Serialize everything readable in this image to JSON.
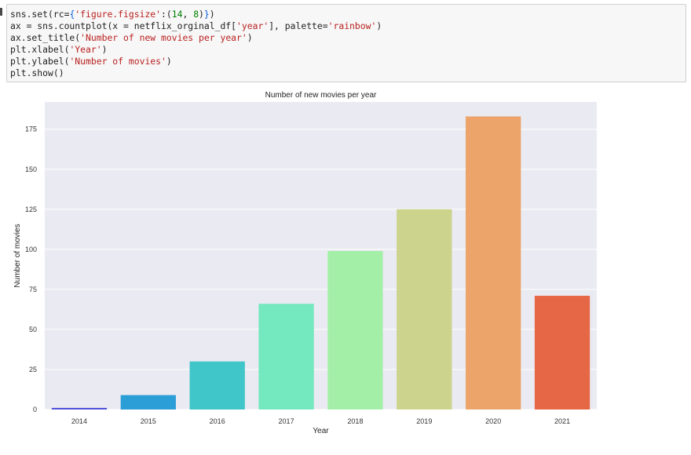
{
  "code_cell": {
    "lines": [
      [
        {
          "t": "sns.set(rc="
        },
        {
          "t": "{",
          "k": "punct"
        },
        {
          "t": "'figure.figsize'",
          "k": "str"
        },
        {
          "t": ":("
        },
        {
          "t": "14",
          "k": "num"
        },
        {
          "t": ", "
        },
        {
          "t": "8",
          "k": "num"
        },
        {
          "t": ")"
        },
        {
          "t": "}",
          "k": "punct"
        },
        {
          "t": ")"
        }
      ],
      [
        {
          "t": "ax = sns.countplot(x = netflix_orginal_df["
        },
        {
          "t": "'year'",
          "k": "str"
        },
        {
          "t": "], palette="
        },
        {
          "t": "'rainbow'",
          "k": "str"
        },
        {
          "t": ")"
        }
      ],
      [
        {
          "t": "ax.set_title("
        },
        {
          "t": "'Number of new movies per year'",
          "k": "str"
        },
        {
          "t": ")"
        }
      ],
      [
        {
          "t": "plt.xlabel("
        },
        {
          "t": "'Year'",
          "k": "str"
        },
        {
          "t": ")"
        }
      ],
      [
        {
          "t": "plt.ylabel("
        },
        {
          "t": "'Number of movies'",
          "k": "str"
        },
        {
          "t": ")"
        }
      ],
      [
        {
          "t": "plt.show()"
        }
      ]
    ]
  },
  "chart_data": {
    "type": "bar",
    "title": "Number of new movies per year",
    "xlabel": "Year",
    "ylabel": "Number of movies",
    "categories": [
      "2014",
      "2015",
      "2016",
      "2017",
      "2018",
      "2019",
      "2020",
      "2021"
    ],
    "values": [
      1,
      9,
      30,
      66,
      99,
      125,
      183,
      71
    ],
    "colors": [
      "#4f52d9",
      "#2b9ed8",
      "#40c5c8",
      "#74e8be",
      "#a4efa8",
      "#cbd38c",
      "#eca46b",
      "#e66746"
    ],
    "ylim": [
      0,
      192
    ],
    "yticks": [
      0,
      25,
      50,
      75,
      100,
      125,
      150,
      175
    ],
    "ytick_labels": [
      "0",
      "25",
      "50",
      "75",
      "100",
      "125",
      "150",
      "175"
    ],
    "grid": true,
    "background": "#eaeaf2"
  }
}
